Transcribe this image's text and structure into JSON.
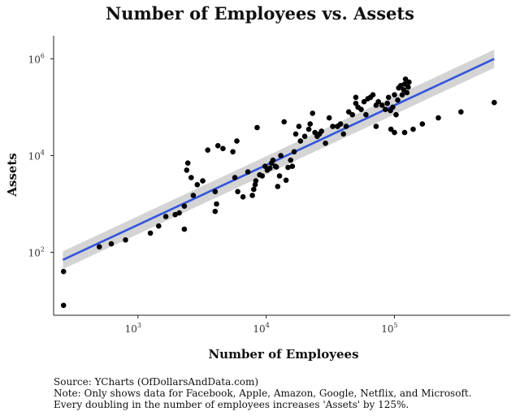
{
  "chart_data": {
    "type": "scatter",
    "title": "Number of Employees vs. Assets",
    "xlabel": "Number of Employees",
    "ylabel": "Assets",
    "x_scale": "log10",
    "y_scale": "log10",
    "xlim": [
      220,
      800000
    ],
    "ylim": [
      5,
      3000000
    ],
    "x_ticks": [
      {
        "value": 1000,
        "base": "10",
        "exp": "3"
      },
      {
        "value": 10000,
        "base": "10",
        "exp": "4"
      },
      {
        "value": 100000,
        "base": "10",
        "exp": "5"
      }
    ],
    "y_ticks": [
      {
        "value": 100,
        "base": "10",
        "exp": "2"
      },
      {
        "value": 10000,
        "base": "10",
        "exp": "4"
      },
      {
        "value": 1000000,
        "base": "10",
        "exp": "6"
      }
    ],
    "grid": false,
    "trend_line": {
      "method": "linear fit (log-log) with confidence band",
      "x": [
        260,
        600000
      ],
      "y": [
        70,
        1000000
      ],
      "ci_lower": [
        45,
        650000
      ],
      "ci_upper": [
        105,
        1550000
      ],
      "color": "#3355dd",
      "band_color": "#cccccc"
    },
    "points_color": "#000000",
    "points": [
      [
        263,
        8
      ],
      [
        263,
        40
      ],
      [
        500,
        130
      ],
      [
        620,
        150
      ],
      [
        800,
        180
      ],
      [
        1250,
        250
      ],
      [
        1450,
        350
      ],
      [
        1650,
        550
      ],
      [
        1950,
        600
      ],
      [
        2100,
        650
      ],
      [
        2300,
        300
      ],
      [
        2300,
        900
      ],
      [
        2400,
        5000
      ],
      [
        2450,
        7000
      ],
      [
        2600,
        3500
      ],
      [
        2700,
        1500
      ],
      [
        2900,
        2500
      ],
      [
        3200,
        3000
      ],
      [
        3500,
        13000
      ],
      [
        4000,
        700
      ],
      [
        4100,
        1000
      ],
      [
        4000,
        1800
      ],
      [
        4200,
        16000
      ],
      [
        4600,
        14000
      ],
      [
        5500,
        12000
      ],
      [
        5700,
        3500
      ],
      [
        5900,
        20000
      ],
      [
        6000,
        1800
      ],
      [
        6600,
        1400
      ],
      [
        7200,
        4600
      ],
      [
        7800,
        1500
      ],
      [
        8000,
        2000
      ],
      [
        8200,
        2500
      ],
      [
        8300,
        3000
      ],
      [
        8500,
        38000
      ],
      [
        8900,
        4000
      ],
      [
        9300,
        3800
      ],
      [
        9800,
        6000
      ],
      [
        10200,
        5000
      ],
      [
        10700,
        5500
      ],
      [
        11000,
        7000
      ],
      [
        11300,
        8000
      ],
      [
        11800,
        6000
      ],
      [
        12000,
        5800
      ],
      [
        12300,
        2300
      ],
      [
        12700,
        3800
      ],
      [
        13000,
        10000
      ],
      [
        13800,
        50000
      ],
      [
        14300,
        3100
      ],
      [
        14800,
        5700
      ],
      [
        15500,
        8000
      ],
      [
        16000,
        6000
      ],
      [
        16500,
        12000
      ],
      [
        17000,
        28000
      ],
      [
        18000,
        40000
      ],
      [
        18500,
        20000
      ],
      [
        20000,
        25000
      ],
      [
        21500,
        35000
      ],
      [
        22000,
        45000
      ],
      [
        23000,
        75000
      ],
      [
        24000,
        30000
      ],
      [
        25000,
        25000
      ],
      [
        26000,
        28000
      ],
      [
        27000,
        32000
      ],
      [
        29000,
        18000
      ],
      [
        31000,
        60000
      ],
      [
        33000,
        40000
      ],
      [
        36000,
        40000
      ],
      [
        38000,
        45000
      ],
      [
        40000,
        28000
      ],
      [
        42000,
        40000
      ],
      [
        44000,
        80000
      ],
      [
        47000,
        70000
      ],
      [
        50000,
        120000
      ],
      [
        50000,
        160000
      ],
      [
        52000,
        100000
      ],
      [
        55000,
        90000
      ],
      [
        58000,
        130000
      ],
      [
        60000,
        70000
      ],
      [
        62000,
        150000
      ],
      [
        65000,
        160000
      ],
      [
        68000,
        180000
      ],
      [
        72000,
        110000
      ],
      [
        75000,
        130000
      ],
      [
        80000,
        110000
      ],
      [
        85000,
        90000
      ],
      [
        88000,
        120000
      ],
      [
        90000,
        160000
      ],
      [
        93000,
        85000
      ],
      [
        97000,
        100000
      ],
      [
        100000,
        180000
      ],
      [
        103000,
        70000
      ],
      [
        106000,
        140000
      ],
      [
        108000,
        250000
      ],
      [
        112000,
        280000
      ],
      [
        115000,
        180000
      ],
      [
        118000,
        230000
      ],
      [
        120000,
        300000
      ],
      [
        122000,
        380000
      ],
      [
        125000,
        200000
      ],
      [
        128000,
        260000
      ],
      [
        130000,
        330000
      ],
      [
        72000,
        40000
      ],
      [
        94000,
        35000
      ],
      [
        100000,
        30000
      ],
      [
        120000,
        30000
      ],
      [
        140000,
        35000
      ],
      [
        165000,
        45000
      ],
      [
        220000,
        60000
      ],
      [
        330000,
        80000
      ],
      [
        600000,
        125000
      ]
    ]
  },
  "captions": {
    "source": "Source: YCharts (OfDollarsAndData.com)",
    "note": "Note: Only shows data for Facebook, Apple, Amazon, Google, Netflix, and Microsoft.",
    "finding": "Every doubling in the number of employees increases 'Assets' by 125%."
  }
}
